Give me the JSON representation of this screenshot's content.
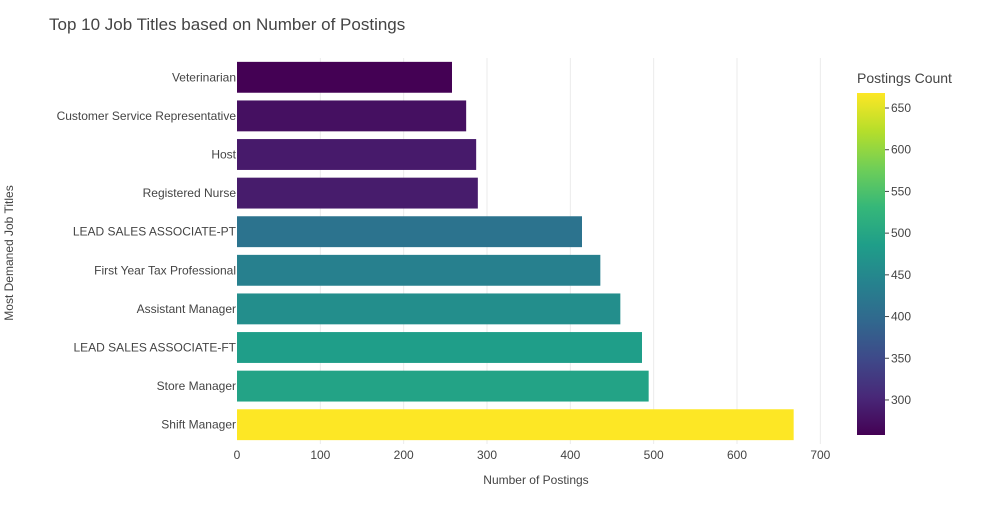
{
  "chart_data": {
    "type": "bar",
    "orientation": "horizontal",
    "title": "Top 10 Job Titles based on Number of Postings",
    "xlabel": "Number of Postings",
    "ylabel": "Most Demaned Job Titles",
    "xlim": [
      0,
      720
    ],
    "x_ticks": [
      0,
      100,
      200,
      300,
      400,
      500,
      600,
      700
    ],
    "grid": true,
    "categories": [
      "Veterinarian",
      "Customer Service Representative",
      "Host",
      "Registered Nurse",
      "LEAD SALES ASSOCIATE-PT",
      "First Year Tax Professional",
      "Assistant Manager",
      "LEAD SALES ASSOCIATE-FT",
      "Store Manager",
      "Shift Manager"
    ],
    "values": [
      258,
      275,
      287,
      289,
      414,
      436,
      460,
      486,
      494,
      668
    ],
    "colorscale": "viridis",
    "colorbar": {
      "title": "Postings Count",
      "range": [
        258,
        668
      ],
      "ticks": [
        300,
        350,
        400,
        450,
        500,
        550,
        600,
        650
      ]
    }
  }
}
